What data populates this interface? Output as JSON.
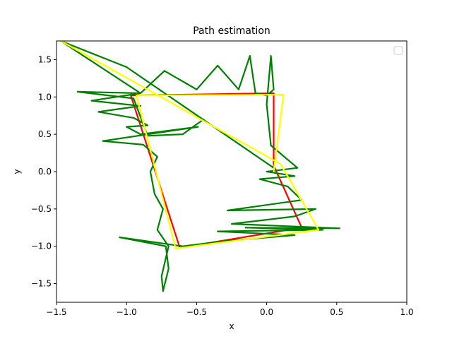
{
  "chart_data": {
    "type": "line",
    "title": "Path estimation",
    "xlabel": "x",
    "ylabel": "y",
    "xlim": [
      -1.5,
      1.0
    ],
    "ylim": [
      -1.75,
      1.75
    ],
    "x_ticks": [
      -1.5,
      -1.0,
      -0.5,
      0.0,
      0.5,
      1.0
    ],
    "x_tick_labels": [
      "−1.5",
      "−1.0",
      "−0.5",
      "0.0",
      "0.5",
      "1.0"
    ],
    "y_ticks": [
      -1.5,
      -1.0,
      -0.5,
      0.0,
      0.5,
      1.0,
      1.5
    ],
    "y_tick_labels": [
      "−1.5",
      "−1.0",
      "−0.5",
      "0.0",
      "0.5",
      "1.0",
      "1.5"
    ],
    "grid": false,
    "legend": {
      "placement": "upper right",
      "entries": []
    },
    "series": [
      {
        "color": "#ff0000",
        "points": [
          [
            -0.97,
            1.02
          ],
          [
            0.05,
            1.05
          ],
          [
            0.05,
            0.08
          ],
          [
            0.25,
            -0.75
          ],
          [
            -0.62,
            -1.02
          ],
          [
            -0.97,
            1.02
          ]
        ]
      },
      {
        "color": "#008000",
        "points": [
          [
            -0.45,
            0.7
          ],
          [
            -0.6,
            0.5
          ],
          [
            -0.85,
            0.48
          ],
          [
            -0.95,
            0.98
          ],
          [
            -1.35,
            1.07
          ],
          [
            -0.9,
            1.05
          ],
          [
            -1.25,
            0.95
          ],
          [
            -0.9,
            0.88
          ],
          [
            -1.2,
            0.8
          ],
          [
            -0.95,
            0.72
          ],
          [
            -0.85,
            0.62
          ],
          [
            -1.0,
            0.6
          ],
          [
            -0.9,
            0.5
          ],
          [
            -0.49,
            0.6
          ],
          [
            -1.17,
            0.41
          ],
          [
            -0.88,
            0.36
          ],
          [
            -0.78,
            0.2
          ],
          [
            -0.83,
            0.0
          ],
          [
            -0.8,
            -0.3
          ],
          [
            -0.74,
            -0.5
          ],
          [
            -0.78,
            -0.78
          ],
          [
            -0.7,
            -1.0
          ],
          [
            -0.75,
            -1.4
          ],
          [
            -0.74,
            -1.6
          ],
          [
            -0.7,
            -1.3
          ],
          [
            -0.72,
            -1.0
          ],
          [
            -1.05,
            -0.88
          ],
          [
            -0.6,
            -1.0
          ],
          [
            -0.3,
            -0.93
          ],
          [
            0.2,
            -0.85
          ],
          [
            -0.35,
            -0.8
          ],
          [
            0.4,
            -0.78
          ],
          [
            -0.15,
            -0.75
          ],
          [
            0.52,
            -0.76
          ],
          [
            -0.25,
            -0.7
          ],
          [
            0.2,
            -0.6
          ],
          [
            0.35,
            -0.5
          ],
          [
            -0.28,
            -0.52
          ],
          [
            0.25,
            -0.38
          ],
          [
            0.15,
            -0.2
          ],
          [
            -0.05,
            -0.1
          ],
          [
            0.2,
            -0.06
          ],
          [
            0.0,
            0.0
          ],
          [
            0.22,
            0.05
          ],
          [
            0.03,
            0.35
          ],
          [
            0.0,
            0.9
          ],
          [
            0.03,
            1.55
          ],
          [
            0.05,
            1.1
          ],
          [
            0.0,
            1.02
          ],
          [
            -0.08,
            1.05
          ],
          [
            -0.12,
            1.55
          ],
          [
            -0.2,
            1.1
          ],
          [
            -0.35,
            1.42
          ],
          [
            -0.5,
            1.1
          ],
          [
            -0.73,
            1.35
          ],
          [
            -0.9,
            1.05
          ],
          [
            -1.47,
            1.75
          ],
          [
            -1.0,
            1.4
          ],
          [
            0.05,
            0.05
          ]
        ]
      },
      {
        "color": "#ffff00",
        "points": [
          [
            -1.47,
            1.75
          ],
          [
            0.1,
            0.1
          ],
          [
            0.37,
            -0.78
          ],
          [
            -0.65,
            -1.03
          ],
          [
            -0.93,
            1.02
          ],
          [
            0.12,
            1.03
          ],
          [
            0.05,
            0.0
          ]
        ]
      }
    ]
  }
}
